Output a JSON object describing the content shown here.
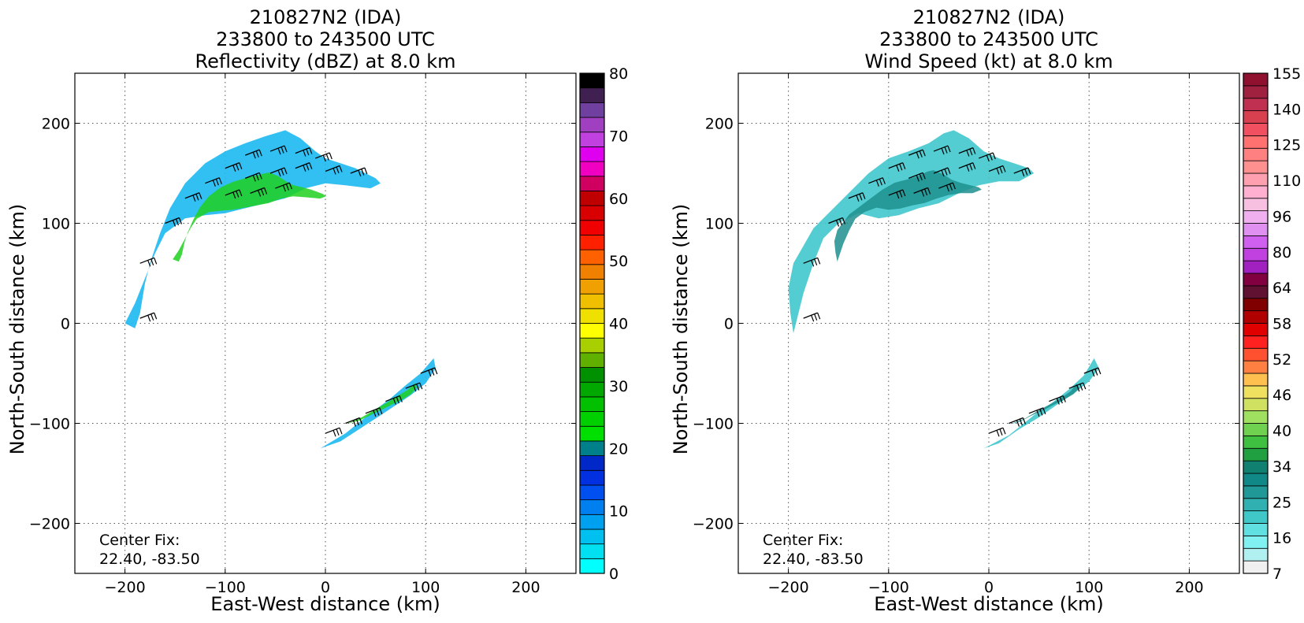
{
  "chart_data": [
    {
      "type": "heatmap",
      "title": [
        "210827N2 (IDA)",
        "233800 to 243500 UTC",
        "Reflectivity (dBZ) at 8.0 km"
      ],
      "xlabel": "East-West distance (km)",
      "ylabel": "North-South distance (km)",
      "xlim": [
        -250,
        250
      ],
      "ylim": [
        -250,
        250
      ],
      "xticks": [
        -200,
        -100,
        0,
        100,
        200
      ],
      "yticks": [
        -200,
        -100,
        0,
        100,
        200
      ],
      "grid": true,
      "annotation": [
        "Center Fix:",
        "22.40, -83.50"
      ],
      "colorbar": {
        "label_values": [
          0,
          10,
          20,
          30,
          40,
          50,
          60,
          70,
          80
        ],
        "levels": 24,
        "colors": [
          "#00ffff",
          "#00e0f0",
          "#00c0f0",
          "#00a0f0",
          "#0080f0",
          "#0050f0",
          "#0030e0",
          "#0028c8",
          "#00808a",
          "#00e000",
          "#00d000",
          "#00c000",
          "#00a800",
          "#009000",
          "#60b000",
          "#a8d000",
          "#ffff00",
          "#f0e000",
          "#f0c000",
          "#f0a000",
          "#f08000",
          "#ff6000",
          "#ff2000",
          "#f00000",
          "#d80000",
          "#c00000",
          "#d00060",
          "#f000c0",
          "#e000f0",
          "#c040e0",
          "#a040c0",
          "#7040a0",
          "#402050",
          "#000000"
        ]
      },
      "regions": [
        {
          "name": "northern-band",
          "points": [
            [
              -190,
              -5
            ],
            [
              -185,
              10
            ],
            [
              -180,
              40
            ],
            [
              -175,
              60
            ],
            [
              -165,
              90
            ],
            [
              -155,
              115
            ],
            [
              -140,
              140
            ],
            [
              -120,
              160
            ],
            [
              -100,
              172
            ],
            [
              -80,
              180
            ],
            [
              -60,
              187
            ],
            [
              -40,
              193
            ],
            [
              -25,
              185
            ],
            [
              -10,
              172
            ],
            [
              0,
              165
            ],
            [
              15,
              160
            ],
            [
              30,
              155
            ],
            [
              40,
              150
            ],
            [
              50,
              145
            ],
            [
              55,
              140
            ],
            [
              45,
              135
            ],
            [
              20,
              138
            ],
            [
              0,
              140
            ],
            [
              -20,
              135
            ],
            [
              -40,
              125
            ],
            [
              -60,
              120
            ],
            [
              -80,
              115
            ],
            [
              -100,
              110
            ],
            [
              -120,
              108
            ],
            [
              -140,
              105
            ],
            [
              -160,
              90
            ],
            [
              -170,
              70
            ],
            [
              -180,
              45
            ],
            [
              -190,
              20
            ],
            [
              -200,
              0
            ]
          ]
        },
        {
          "name": "southern-band",
          "points": [
            [
              -5,
              -125
            ],
            [
              20,
              -110
            ],
            [
              45,
              -90
            ],
            [
              65,
              -75
            ],
            [
              80,
              -62
            ],
            [
              95,
              -50
            ],
            [
              108,
              -35
            ],
            [
              110,
              -45
            ],
            [
              100,
              -60
            ],
            [
              85,
              -72
            ],
            [
              70,
              -82
            ],
            [
              55,
              -92
            ],
            [
              35,
              -105
            ],
            [
              15,
              -118
            ]
          ]
        }
      ],
      "wind_barbs": [
        [
          -185,
          5
        ],
        [
          -185,
          60
        ],
        [
          -160,
          100
        ],
        [
          -140,
          125
        ],
        [
          -120,
          140
        ],
        [
          -100,
          155
        ],
        [
          -80,
          168
        ],
        [
          -55,
          172
        ],
        [
          -30,
          170
        ],
        [
          -10,
          165
        ],
        [
          -80,
          145
        ],
        [
          -55,
          150
        ],
        [
          -30,
          155
        ],
        [
          0,
          152
        ],
        [
          25,
          150
        ],
        [
          -100,
          128
        ],
        [
          -75,
          130
        ],
        [
          -50,
          135
        ],
        [
          0,
          -110
        ],
        [
          20,
          -100
        ],
        [
          40,
          -90
        ],
        [
          60,
          -78
        ],
        [
          80,
          -65
        ],
        [
          95,
          -50
        ]
      ]
    },
    {
      "type": "heatmap",
      "title": [
        "210827N2 (IDA)",
        "233800 to 243500 UTC",
        "Wind Speed (kt) at 8.0 km"
      ],
      "xlabel": "East-West distance (km)",
      "ylabel": "North-South distance (km)",
      "xlim": [
        -250,
        250
      ],
      "ylim": [
        -250,
        250
      ],
      "xticks": [
        -200,
        -100,
        0,
        100,
        200
      ],
      "yticks": [
        -200,
        -100,
        0,
        100,
        200
      ],
      "grid": true,
      "annotation": [
        "Center Fix:",
        "22.40, -83.50"
      ],
      "colorbar": {
        "label_values": [
          7,
          16,
          25,
          34,
          40,
          46,
          52,
          58,
          64,
          80,
          96,
          110,
          125,
          140,
          155
        ],
        "colors": [
          "#f0f0f0",
          "#b0f0f0",
          "#80f0f0",
          "#60e0e0",
          "#40c8c8",
          "#30b0b0",
          "#209898",
          "#108888",
          "#108070",
          "#20a040",
          "#40c040",
          "#70d050",
          "#a0e060",
          "#d0e060",
          "#f0e060",
          "#ffc050",
          "#ff8040",
          "#ff5030",
          "#ff2020",
          "#e00000",
          "#b00000",
          "#800000",
          "#601030",
          "#800040",
          "#a020c0",
          "#c040e0",
          "#d060f0",
          "#e090f0",
          "#f0b0f0",
          "#f8c0e0",
          "#ffb0d0",
          "#ffa0b0",
          "#ff9090",
          "#ff8080",
          "#ff7070",
          "#f05060",
          "#d84050",
          "#c03050",
          "#a02040",
          "#901030"
        ]
      },
      "regions": [
        {
          "name": "northern-band",
          "points": [
            [
              -195,
              -10
            ],
            [
              -198,
              10
            ],
            [
              -200,
              35
            ],
            [
              -195,
              60
            ],
            [
              -175,
              95
            ],
            [
              -160,
              110
            ],
            [
              -140,
              130
            ],
            [
              -120,
              150
            ],
            [
              -100,
              165
            ],
            [
              -80,
              172
            ],
            [
              -60,
              180
            ],
            [
              -45,
              190
            ],
            [
              -35,
              193
            ],
            [
              -20,
              185
            ],
            [
              -5,
              172
            ],
            [
              10,
              165
            ],
            [
              25,
              160
            ],
            [
              40,
              155
            ],
            [
              45,
              150
            ],
            [
              30,
              142
            ],
            [
              10,
              142
            ],
            [
              -10,
              138
            ],
            [
              -30,
              130
            ],
            [
              -50,
              120
            ],
            [
              -70,
              115
            ],
            [
              -90,
              108
            ],
            [
              -110,
              105
            ],
            [
              -130,
              110
            ],
            [
              -150,
              100
            ],
            [
              -165,
              85
            ],
            [
              -175,
              60
            ],
            [
              -185,
              30
            ]
          ]
        },
        {
          "name": "southern-band",
          "points": [
            [
              -5,
              -125
            ],
            [
              20,
              -112
            ],
            [
              45,
              -92
            ],
            [
              65,
              -78
            ],
            [
              80,
              -66
            ],
            [
              95,
              -52
            ],
            [
              105,
              -35
            ],
            [
              110,
              -45
            ],
            [
              100,
              -58
            ],
            [
              85,
              -70
            ],
            [
              70,
              -80
            ],
            [
              50,
              -94
            ],
            [
              30,
              -106
            ],
            [
              10,
              -120
            ]
          ]
        }
      ],
      "wind_barbs": [
        [
          -185,
          5
        ],
        [
          -185,
          60
        ],
        [
          -160,
          100
        ],
        [
          -140,
          125
        ],
        [
          -120,
          140
        ],
        [
          -100,
          155
        ],
        [
          -80,
          168
        ],
        [
          -55,
          172
        ],
        [
          -30,
          170
        ],
        [
          -10,
          165
        ],
        [
          -80,
          145
        ],
        [
          -55,
          150
        ],
        [
          -30,
          155
        ],
        [
          0,
          152
        ],
        [
          25,
          150
        ],
        [
          -100,
          128
        ],
        [
          -75,
          130
        ],
        [
          -50,
          135
        ],
        [
          0,
          -110
        ],
        [
          20,
          -100
        ],
        [
          40,
          -90
        ],
        [
          60,
          -78
        ],
        [
          80,
          -65
        ],
        [
          95,
          -50
        ]
      ]
    }
  ]
}
